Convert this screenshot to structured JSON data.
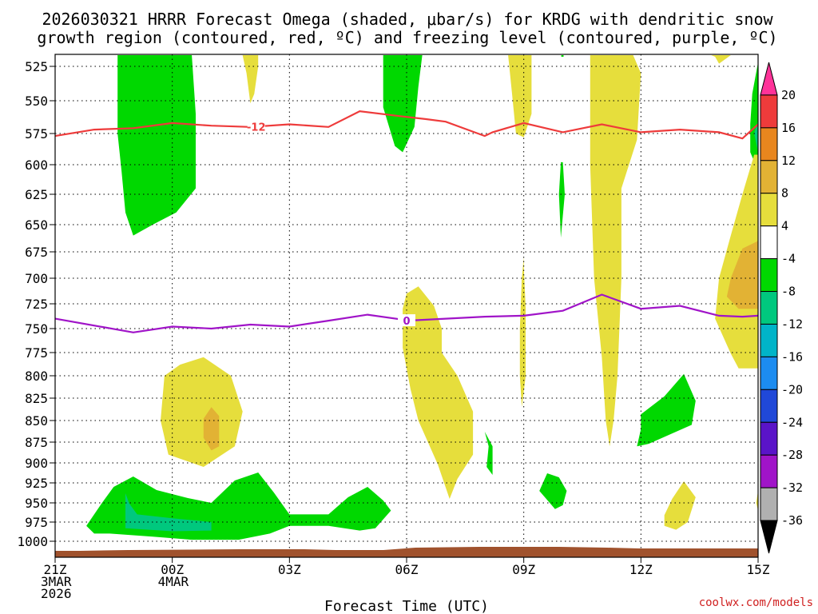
{
  "chart_data": {
    "type": "time-height contour",
    "title_line1": "2026030321 HRRR Forecast Omega (shaded, μbar/s) for KRDG with dendritic snow",
    "title_line2": "growth region (contoured, red, ºC) and freezing level (contoured, purple, ºC)",
    "xlabel": "Forecast Time (UTC)",
    "credit": "coolwx.com/models",
    "x_hours": [
      0,
      3,
      6,
      9,
      12,
      15,
      18
    ],
    "x_ticks": [
      {
        "hour": 0,
        "lines": [
          "21Z",
          "3MAR",
          "2026"
        ]
      },
      {
        "hour": 3,
        "lines": [
          "00Z",
          "4MAR"
        ]
      },
      {
        "hour": 6,
        "lines": [
          "03Z"
        ]
      },
      {
        "hour": 9,
        "lines": [
          "06Z"
        ]
      },
      {
        "hour": 12,
        "lines": [
          "09Z"
        ]
      },
      {
        "hour": 15,
        "lines": [
          "12Z"
        ]
      },
      {
        "hour": 18,
        "lines": [
          "15Z"
        ]
      }
    ],
    "y_ticks": [
      525,
      550,
      575,
      600,
      625,
      650,
      675,
      700,
      725,
      750,
      775,
      800,
      825,
      850,
      875,
      900,
      925,
      950,
      975,
      1000
    ],
    "ylim_hpa": [
      512,
      1020
    ],
    "xlim_hours": [
      0,
      18
    ],
    "colorbar": {
      "labels": [
        "20",
        "16",
        "12",
        "8",
        "4",
        "-4",
        "-8",
        "-12",
        "-16",
        "-20",
        "-24",
        "-28",
        "-32",
        "-36"
      ],
      "colors": [
        "#ff3399",
        "#ee3b3b",
        "#e8861e",
        "#e2b234",
        "#e6de3c",
        "#ffffff",
        "#00d800",
        "#00c87e",
        "#00b4c8",
        "#1c8cf0",
        "#2048d8",
        "#5a14c8",
        "#a014c8",
        "#b0b0b0",
        "#000000"
      ]
    },
    "line_labels": {
      "dgz": "-12",
      "freezing": "0"
    },
    "dgz_line_minus12C": {
      "hours": [
        0,
        1,
        2,
        3,
        4,
        5,
        6,
        7,
        7.8,
        8.9,
        9.5,
        10,
        11,
        11.2,
        12,
        13,
        14,
        15,
        16,
        17,
        17.6,
        18
      ],
      "hpa": [
        577,
        572,
        571,
        567,
        569,
        570,
        568,
        570,
        558,
        562,
        564,
        566,
        577,
        574,
        567,
        574,
        568,
        574,
        572,
        574,
        579,
        568
      ]
    },
    "freezing_line_0C": {
      "hours": [
        0,
        2,
        3,
        4,
        5,
        6,
        7,
        8,
        8.9,
        9,
        10,
        11,
        12,
        13,
        14,
        15,
        16,
        17,
        17.6,
        18
      ],
      "hpa": [
        740,
        754,
        748,
        750,
        746,
        748,
        742,
        736,
        741,
        742,
        740,
        738,
        737,
        732,
        716,
        730,
        727,
        737,
        738,
        737
      ]
    },
    "omega_regions": [
      {
        "category": "-8",
        "color": "#00d800",
        "pts": [
          [
            1.6,
            512
          ],
          [
            1.6,
            575
          ],
          [
            1.7,
            605
          ],
          [
            1.8,
            640
          ],
          [
            2.0,
            660
          ],
          [
            2.5,
            650
          ],
          [
            3.1,
            640
          ],
          [
            3.6,
            620
          ],
          [
            3.6,
            560
          ],
          [
            3.5,
            512
          ]
        ]
      },
      {
        "category": "-8",
        "color": "#00d800",
        "pts": [
          [
            8.4,
            512
          ],
          [
            8.4,
            555
          ],
          [
            8.7,
            585
          ],
          [
            8.9,
            590
          ],
          [
            9.2,
            570
          ],
          [
            9.3,
            540
          ],
          [
            9.4,
            512
          ]
        ]
      },
      {
        "category": "-8",
        "color": "#00d800",
        "pts": [
          [
            12.96,
            512
          ],
          [
            12.96,
            518
          ],
          [
            13.02,
            518
          ],
          [
            13.02,
            512
          ]
        ]
      },
      {
        "category": "-8",
        "color": "#00d800",
        "pts": [
          [
            12.95,
            598
          ],
          [
            12.9,
            625
          ],
          [
            12.95,
            662
          ],
          [
            13.05,
            625
          ],
          [
            13.0,
            598
          ]
        ]
      },
      {
        "category": "-8",
        "color": "#00d800",
        "pts": [
          [
            18.0,
            522
          ],
          [
            17.85,
            545
          ],
          [
            17.8,
            568
          ],
          [
            17.8,
            590
          ],
          [
            18.0,
            605
          ]
        ]
      },
      {
        "category": "-8",
        "color": "#00d800",
        "pts": [
          [
            0.8,
            980
          ],
          [
            1.2,
            950
          ],
          [
            1.5,
            930
          ],
          [
            2.0,
            917
          ],
          [
            2.6,
            934
          ],
          [
            3.4,
            944
          ],
          [
            4.0,
            950
          ],
          [
            4.6,
            922
          ],
          [
            5.2,
            912
          ],
          [
            5.6,
            937
          ],
          [
            6.0,
            965
          ],
          [
            7.0,
            965
          ],
          [
            7.5,
            943
          ],
          [
            8.0,
            930
          ],
          [
            8.4,
            947
          ],
          [
            8.6,
            960
          ],
          [
            8.2,
            983
          ],
          [
            7.8,
            986
          ],
          [
            7.0,
            980
          ],
          [
            6.0,
            980
          ],
          [
            5.5,
            990
          ],
          [
            4.7,
            998
          ],
          [
            3.5,
            998
          ],
          [
            2.5,
            994
          ],
          [
            1.4,
            990
          ],
          [
            1.0,
            990
          ]
        ]
      },
      {
        "category": "-8",
        "color": "#00d800",
        "pts": [
          [
            12.6,
            913
          ],
          [
            12.4,
            935
          ],
          [
            12.8,
            958
          ],
          [
            13.0,
            953
          ],
          [
            13.1,
            935
          ],
          [
            12.9,
            918
          ]
        ]
      },
      {
        "category": "-8",
        "color": "#00d800",
        "pts": [
          [
            15.0,
            843
          ],
          [
            15.6,
            823
          ],
          [
            16.1,
            798
          ],
          [
            16.4,
            828
          ],
          [
            16.3,
            855
          ],
          [
            15.2,
            877
          ],
          [
            14.9,
            880
          ],
          [
            15.0,
            860
          ]
        ]
      },
      {
        "category": "-8",
        "color": "#00d800",
        "pts": [
          [
            11.0,
            863
          ],
          [
            11.1,
            880
          ],
          [
            11.05,
            905
          ],
          [
            11.2,
            915
          ],
          [
            11.2,
            880
          ]
        ]
      },
      {
        "category": "-12",
        "color": "#00c87e",
        "pts": [
          [
            1.8,
            938
          ],
          [
            1.9,
            951
          ],
          [
            2.1,
            965
          ],
          [
            3.0,
            970
          ],
          [
            4.0,
            975
          ],
          [
            4.0,
            986
          ],
          [
            3.0,
            987
          ],
          [
            1.8,
            983
          ],
          [
            1.8,
            960
          ]
        ]
      },
      {
        "category": "-12",
        "color": "#00c87e",
        "pts": [
          [
            17.9,
            575
          ],
          [
            18.0,
            565
          ],
          [
            18.0,
            590
          ]
        ]
      },
      {
        "category": "4",
        "color": "#e6de3c",
        "pts": [
          [
            4.8,
            512
          ],
          [
            5.2,
            512
          ],
          [
            5.2,
            525
          ],
          [
            5.1,
            545
          ],
          [
            5.0,
            552
          ],
          [
            4.9,
            530
          ]
        ]
      },
      {
        "category": "4",
        "color": "#e6de3c",
        "pts": [
          [
            11.6,
            512
          ],
          [
            12.2,
            512
          ],
          [
            12.2,
            560
          ],
          [
            12.0,
            578
          ],
          [
            11.8,
            575
          ],
          [
            11.7,
            545
          ]
        ]
      },
      {
        "category": "4",
        "color": "#e6de3c",
        "pts": [
          [
            13.7,
            512
          ],
          [
            14.8,
            512
          ],
          [
            15.0,
            530
          ],
          [
            14.9,
            580
          ],
          [
            14.5,
            620
          ],
          [
            14.5,
            700
          ],
          [
            14.4,
            800
          ],
          [
            14.3,
            850
          ],
          [
            14.2,
            880
          ],
          [
            14.1,
            850
          ],
          [
            14.0,
            780
          ],
          [
            13.8,
            700
          ],
          [
            13.7,
            600
          ]
        ]
      },
      {
        "category": "4",
        "color": "#e6de3c",
        "pts": [
          [
            16.8,
            512
          ],
          [
            17.3,
            512
          ],
          [
            17.0,
            523
          ],
          [
            16.9,
            518
          ]
        ]
      },
      {
        "category": "4",
        "color": "#e6de3c",
        "pts": [
          [
            12.0,
            680
          ],
          [
            11.95,
            700
          ],
          [
            11.9,
            750
          ],
          [
            11.9,
            800
          ],
          [
            11.95,
            835
          ],
          [
            12.05,
            800
          ],
          [
            12.05,
            730
          ],
          [
            12.0,
            690
          ]
        ]
      },
      {
        "category": "4",
        "color": "#e6de3c",
        "pts": [
          [
            9.3,
            708
          ],
          [
            9.7,
            727
          ],
          [
            9.9,
            750
          ],
          [
            9.9,
            775
          ],
          [
            10.3,
            800
          ],
          [
            10.7,
            840
          ],
          [
            10.7,
            890
          ],
          [
            10.3,
            920
          ],
          [
            10.1,
            945
          ],
          [
            9.8,
            902
          ],
          [
            9.3,
            850
          ],
          [
            9.1,
            815
          ],
          [
            8.9,
            770
          ],
          [
            8.9,
            730
          ],
          [
            9.0,
            715
          ]
        ]
      },
      {
        "category": "4",
        "color": "#e6de3c",
        "pts": [
          [
            2.8,
            800
          ],
          [
            3.2,
            788
          ],
          [
            3.8,
            780
          ],
          [
            4.5,
            800
          ],
          [
            4.8,
            840
          ],
          [
            4.6,
            880
          ],
          [
            3.8,
            905
          ],
          [
            2.9,
            890
          ],
          [
            2.7,
            850
          ]
        ]
      },
      {
        "category": "4",
        "color": "#e6de3c",
        "pts": [
          [
            17.9,
            592
          ],
          [
            17.6,
            625
          ],
          [
            17.3,
            660
          ],
          [
            17.0,
            700
          ],
          [
            16.9,
            740
          ],
          [
            17.3,
            776
          ],
          [
            17.5,
            792
          ],
          [
            18.0,
            792
          ],
          [
            18.0,
            592
          ]
        ]
      },
      {
        "category": "4",
        "color": "#e6de3c",
        "pts": [
          [
            15.6,
            966
          ],
          [
            15.8,
            945
          ],
          [
            16.1,
            923
          ],
          [
            16.4,
            943
          ],
          [
            16.2,
            975
          ],
          [
            15.9,
            985
          ],
          [
            15.6,
            980
          ]
        ]
      },
      {
        "category": "4",
        "color": "#e6de3c",
        "pts": [
          [
            18.0,
            935
          ],
          [
            17.95,
            950
          ],
          [
            18.0,
            960
          ]
        ]
      },
      {
        "category": "8",
        "color": "#e2b234",
        "pts": [
          [
            3.8,
            848
          ],
          [
            4.0,
            835
          ],
          [
            4.2,
            845
          ],
          [
            4.2,
            880
          ],
          [
            4.0,
            885
          ],
          [
            3.8,
            870
          ]
        ]
      },
      {
        "category": "8",
        "color": "#e2b234",
        "pts": [
          [
            18.0,
            665
          ],
          [
            17.6,
            672
          ],
          [
            17.3,
            700
          ],
          [
            17.2,
            718
          ],
          [
            17.5,
            730
          ],
          [
            18.0,
            730
          ]
        ]
      }
    ]
  }
}
